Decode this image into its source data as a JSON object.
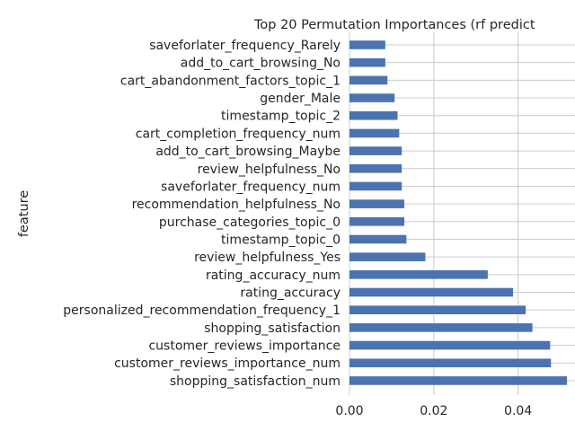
{
  "colors": {
    "bar": "#4c72b0",
    "grid": "#cccccc",
    "text": "#262626",
    "background": "#ffffff"
  },
  "chart_data": {
    "type": "bar",
    "orientation": "horizontal",
    "title": "Top 20 Permutation Importances (rf predict",
    "xlabel": "",
    "ylabel": "feature",
    "xlim": [
      0,
      0.0535
    ],
    "xticks": [
      0.0,
      0.02,
      0.04
    ],
    "xtick_labels": [
      "0.00",
      "0.02",
      "0.04"
    ],
    "grid": true,
    "legend": "none",
    "categories": [
      "shopping_satisfaction_num",
      "customer_reviews_importance_num",
      "customer_reviews_importance",
      "shopping_satisfaction",
      "personalized_recommendation_frequency_1",
      "rating_accuracy",
      "rating_accuracy_num",
      "review_helpfulness_Yes",
      "timestamp_topic_0",
      "purchase_categories_topic_0",
      "recommendation_helpfulness_No",
      "saveforlater_frequency_num",
      "review_helpfulness_No",
      "add_to_cart_browsing_Maybe",
      "cart_completion_frequency_num",
      "timestamp_topic_2",
      "gender_Male",
      "cart_abandonment_factors_topic_1",
      "add_to_cart_browsing_No",
      "saveforlater_frequency_Rarely"
    ],
    "values": [
      0.0516,
      0.0478,
      0.0476,
      0.0434,
      0.0418,
      0.0388,
      0.0328,
      0.018,
      0.0135,
      0.013,
      0.013,
      0.0124,
      0.0124,
      0.0124,
      0.0118,
      0.0114,
      0.0107,
      0.009,
      0.0085,
      0.0085
    ]
  }
}
